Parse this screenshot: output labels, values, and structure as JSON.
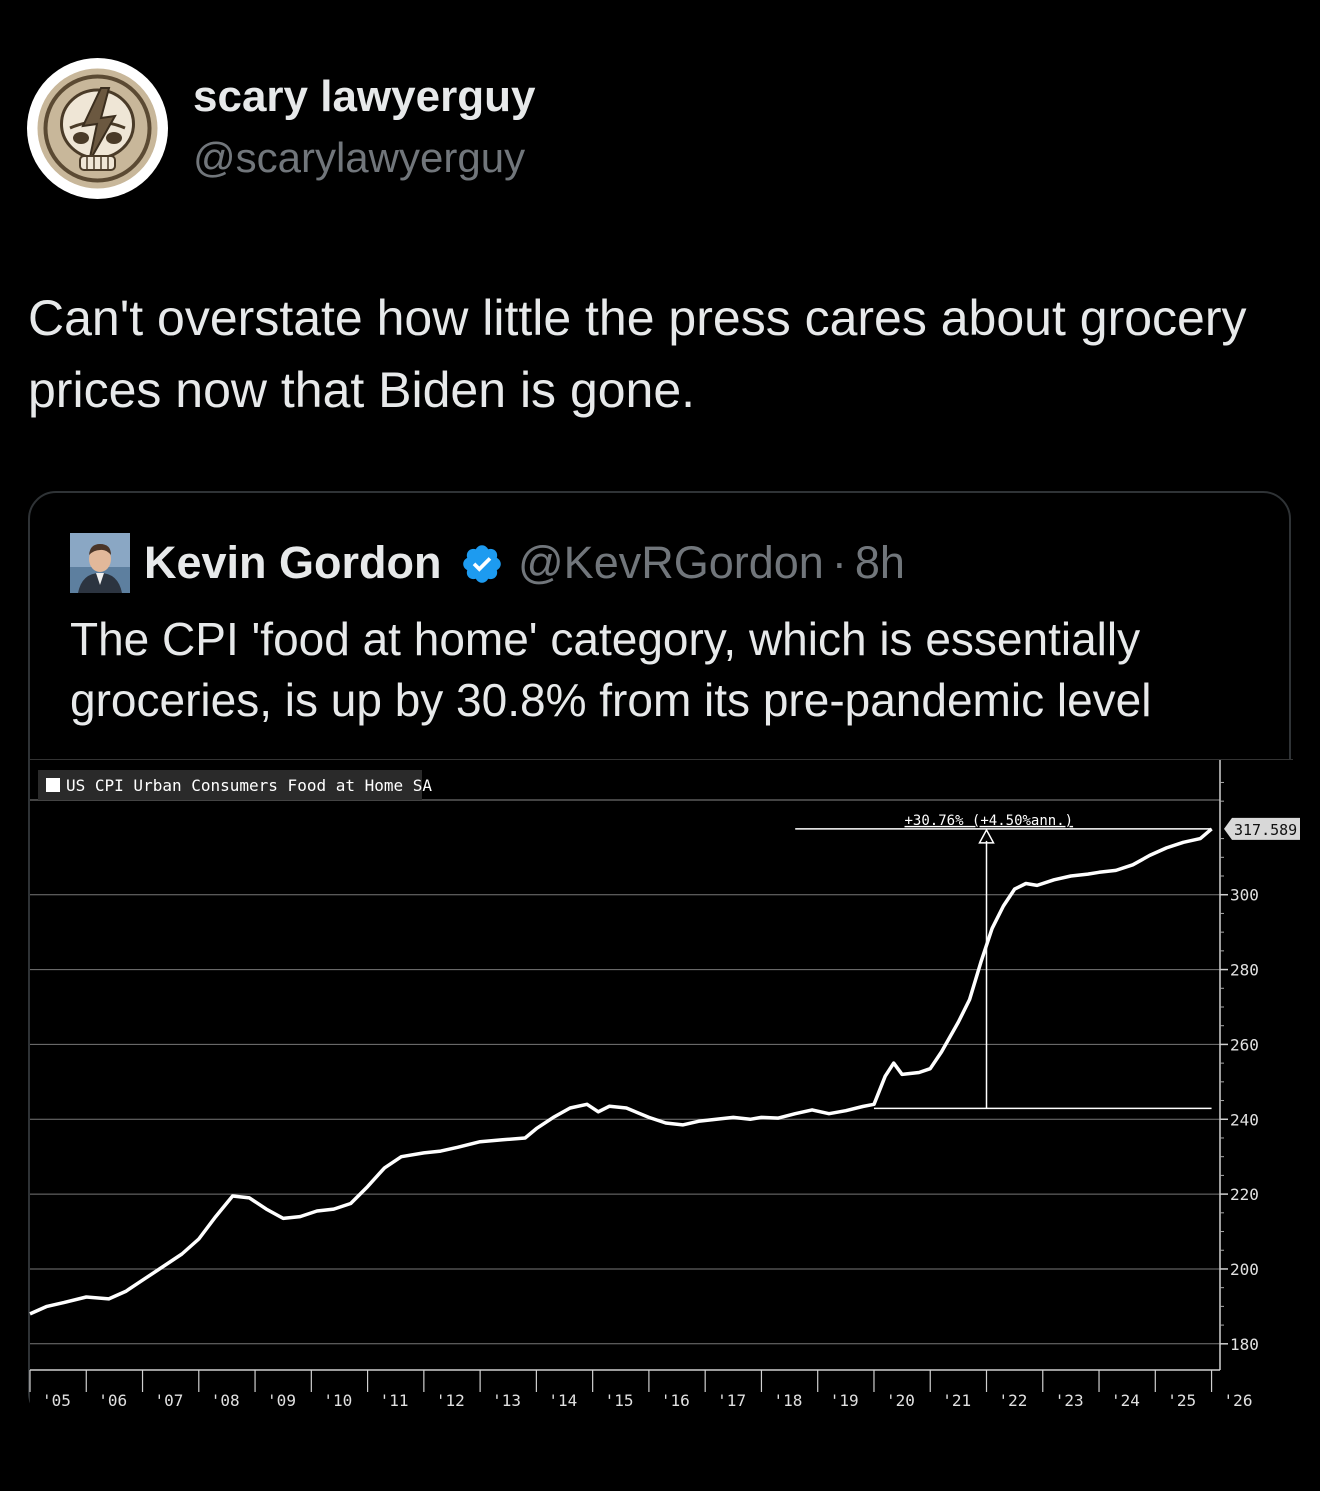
{
  "tweet": {
    "display_name": "scary lawyerguy",
    "handle": "@scarylawyerguy",
    "text": "Can't overstate how little the press cares about grocery prices now that Biden is gone.",
    "avatar_icon": "steal-your-face-skull-icon"
  },
  "quote": {
    "display_name": "Kevin Gordon",
    "handle": "@KevRGordon",
    "separator": "·",
    "time": "8h",
    "verified_icon": "verified-badge-icon",
    "verified_color": "#1d9bf0",
    "text": "The CPI 'food at home' category, which is essentially groceries, is up by 30.8% from its pre-pandemic level"
  },
  "chart_data": {
    "type": "line",
    "legend": "US CPI Urban Consumers Food at Home SA",
    "annotation": "+30.76% (+4.50%ann.)",
    "last_value_label": "317.589",
    "y_ticks": [
      "300",
      "280",
      "260",
      "240",
      "220",
      "200",
      "180"
    ],
    "ylim": [
      173,
      336
    ],
    "x_ticks": [
      "'05",
      "'06",
      "'07",
      "'08",
      "'09",
      "'10",
      "'11",
      "'12",
      "'13",
      "'14",
      "'15",
      "'16",
      "'17",
      "'18",
      "'19",
      "'20",
      "'21",
      "'22",
      "'23",
      "'24",
      "'25",
      "'26"
    ],
    "xlim": [
      2005.0,
      2026.15
    ],
    "pre_pandemic_level": 242.9,
    "series": [
      {
        "x": [
          2005.0,
          2005.3,
          2005.6,
          2006.0,
          2006.4,
          2006.7,
          2007.0,
          2007.3,
          2007.7,
          2008.0,
          2008.3,
          2008.6,
          2008.9,
          2009.2,
          2009.5,
          2009.8,
          2010.1,
          2010.4,
          2010.7,
          2011.0,
          2011.3,
          2011.6,
          2012.0,
          2012.3,
          2012.6,
          2013.0,
          2013.4,
          2013.8,
          2014.0,
          2014.3,
          2014.6,
          2014.9,
          2015.1,
          2015.3,
          2015.6,
          2016.0,
          2016.3,
          2016.6,
          2016.9,
          2017.2,
          2017.5,
          2017.8,
          2018.0,
          2018.3,
          2018.6,
          2018.9,
          2019.2,
          2019.5,
          2019.8,
          2020.0,
          2020.2,
          2020.35,
          2020.5,
          2020.8,
          2021.0,
          2021.2,
          2021.5,
          2021.7,
          2021.9,
          2022.1,
          2022.3,
          2022.5,
          2022.7,
          2022.9,
          2023.2,
          2023.5,
          2023.8,
          2024.0,
          2024.3,
          2024.6,
          2024.9,
          2025.2,
          2025.5,
          2025.8,
          2026.0
        ],
        "y": [
          188,
          190,
          191,
          192.5,
          192,
          194,
          197,
          200,
          204,
          208,
          214,
          219.5,
          219,
          216,
          213.5,
          214,
          215.5,
          216,
          217.5,
          222,
          227,
          230,
          231,
          231.5,
          232.5,
          234,
          234.5,
          235,
          237.5,
          240.5,
          243,
          244,
          242,
          243.5,
          243,
          240.5,
          239,
          238.5,
          239.5,
          240,
          240.5,
          240,
          240.5,
          240.3,
          241.5,
          242.5,
          241.5,
          242.3,
          243.4,
          244.0,
          251.5,
          255,
          252,
          252.5,
          253.5,
          258,
          266,
          272,
          282,
          291,
          297,
          301.5,
          303,
          302.5,
          304,
          305,
          305.5,
          306,
          306.5,
          308,
          310.5,
          312.5,
          314,
          315,
          317.589
        ]
      }
    ]
  }
}
